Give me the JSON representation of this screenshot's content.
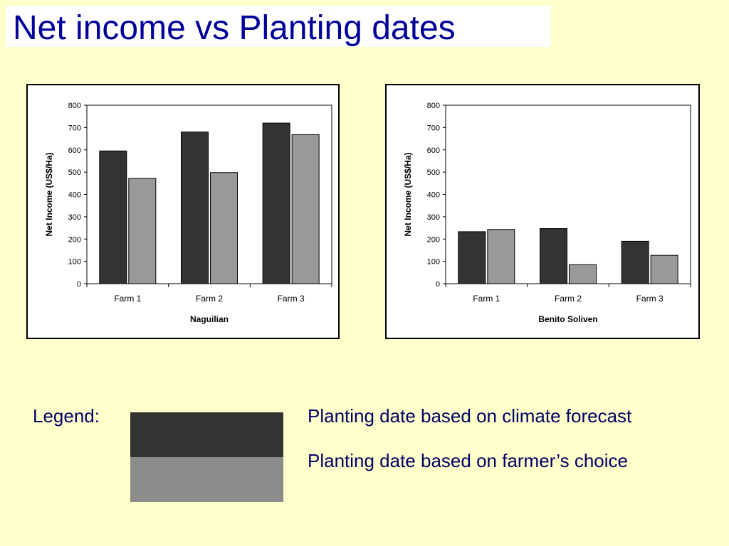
{
  "slide": {
    "title": "Net income vs Planting dates"
  },
  "colors": {
    "background": "#ffffcc",
    "title": "#000099",
    "text": "#000066",
    "series_forecast": "#333333",
    "series_farmer": "#999999"
  },
  "legend": {
    "label": "Legend:",
    "items": [
      {
        "text": "Planting date based on climate forecast",
        "color": "#333333"
      },
      {
        "text": "Planting date based on farmer’s choice",
        "color": "#8c8c8c"
      }
    ]
  },
  "chart_data": [
    {
      "type": "bar",
      "title": "",
      "xlabel": "Naguilian",
      "ylabel": "Net Income (US$/Ha)",
      "ylim": [
        0,
        800
      ],
      "yticks": [
        "800",
        "700",
        "600",
        "500",
        "400",
        "300",
        "200",
        "100",
        "0"
      ],
      "categories": [
        "Farm 1",
        "Farm 2",
        "Farm 3"
      ],
      "series": [
        {
          "values": [
            595,
            680,
            720
          ]
        },
        {
          "values": [
            472,
            498,
            668
          ]
        }
      ],
      "grid": false
    },
    {
      "type": "bar",
      "title": "",
      "xlabel": "Benito Soliven",
      "ylabel": "Net Income (US$/Ha)",
      "ylim": [
        0,
        800
      ],
      "yticks": [
        "800",
        "700",
        "600",
        "500",
        "400",
        "300",
        "200",
        "100",
        "0"
      ],
      "categories": [
        "Farm 1",
        "Farm 2",
        "Farm 3"
      ],
      "series": [
        {
          "values": [
            233,
            247,
            190
          ]
        },
        {
          "values": [
            243,
            85,
            127
          ]
        }
      ],
      "grid": false
    }
  ]
}
